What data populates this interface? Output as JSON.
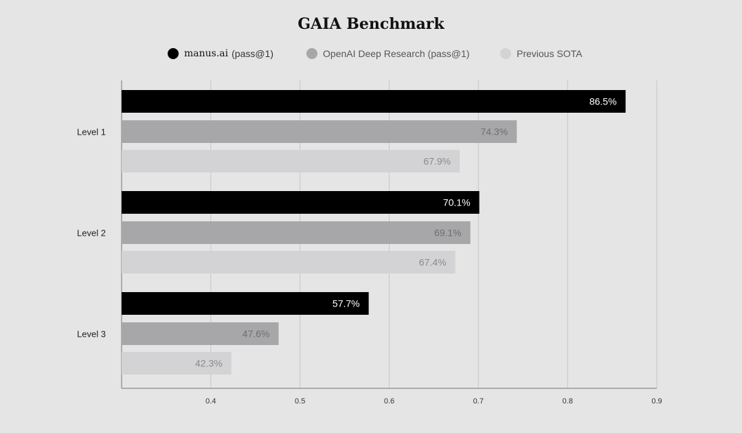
{
  "chart_data": {
    "type": "bar",
    "orientation": "horizontal",
    "title": "GAIA Benchmark",
    "categories": [
      "Level 1",
      "Level 2",
      "Level 3"
    ],
    "series": [
      {
        "name": "manus.ai (pass@1)",
        "name_main": "manus.ai",
        "name_suffix": "(pass@1)",
        "color": "#000000",
        "label_color": "#ffffff",
        "values": [
          0.865,
          0.701,
          0.577
        ],
        "labels": [
          "86.5%",
          "70.1%",
          "57.7%"
        ]
      },
      {
        "name": "OpenAI Deep Research (pass@1)",
        "color": "#a7a7aa",
        "label_color": "#6e6e70",
        "values": [
          0.743,
          0.691,
          0.476
        ],
        "labels": [
          "74.3%",
          "69.1%",
          "47.6%"
        ]
      },
      {
        "name": "Previous SOTA",
        "color": "#d3d3d5",
        "label_color": "#8a8a8c",
        "values": [
          0.679,
          0.674,
          0.423
        ],
        "labels": [
          "67.9%",
          "67.4%",
          "42.3%"
        ]
      }
    ],
    "xticks": [
      0.4,
      0.5,
      0.6,
      0.7,
      0.8,
      0.9
    ],
    "xtick_labels": [
      "0.4",
      "0.5",
      "0.6",
      "0.7",
      "0.8",
      "0.9"
    ],
    "xlim": [
      0.3,
      0.9
    ],
    "grid": true,
    "legend_position": "top-center",
    "xlabel": "",
    "ylabel": ""
  }
}
